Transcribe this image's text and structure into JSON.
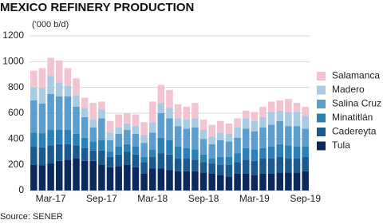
{
  "chart_data": {
    "type": "stacked_bar",
    "title": "MEXICO REFINERY PRODUCTION",
    "subtitle": "('000 b/d)",
    "source": "Source: SENER",
    "categories": [
      null,
      null,
      "Mar-17",
      null,
      null,
      null,
      null,
      null,
      "Sep-17",
      null,
      null,
      null,
      null,
      null,
      "Mar-18",
      null,
      null,
      null,
      null,
      null,
      "Sep-18",
      null,
      null,
      null,
      null,
      null,
      "Mar-19",
      null,
      null,
      null,
      null,
      null,
      "Sep-19"
    ],
    "series": [
      {
        "name": "Tula",
        "color": "#0b2a5b",
        "values": [
          200,
          195,
          210,
          230,
          240,
          250,
          230,
          230,
          200,
          180,
          190,
          200,
          180,
          130,
          170,
          170,
          160,
          150,
          150,
          150,
          140,
          130,
          120,
          110,
          130,
          130,
          120,
          130,
          130,
          140,
          140,
          140,
          150
        ]
      },
      {
        "name": "Cadereyta",
        "color": "#1b5a8e",
        "values": [
          140,
          140,
          140,
          130,
          120,
          100,
          100,
          80,
          110,
          80,
          90,
          100,
          100,
          90,
          90,
          120,
          120,
          100,
          100,
          90,
          80,
          80,
          80,
          90,
          90,
          110,
          110,
          120,
          120,
          120,
          110,
          110,
          110
        ]
      },
      {
        "name": "Minatitlán",
        "color": "#2b80b6",
        "values": [
          110,
          110,
          120,
          110,
          110,
          90,
          80,
          70,
          80,
          40,
          60,
          60,
          60,
          40,
          60,
          120,
          110,
          90,
          80,
          80,
          60,
          40,
          60,
          60,
          70,
          90,
          90,
          80,
          90,
          100,
          100,
          90,
          80
        ]
      },
      {
        "name": "Salina Cruz",
        "color": "#5b9dcc",
        "values": [
          250,
          230,
          280,
          260,
          260,
          210,
          160,
          110,
          170,
          90,
          100,
          110,
          100,
          110,
          130,
          190,
          170,
          160,
          150,
          170,
          120,
          110,
          130,
          120,
          120,
          150,
          140,
          160,
          170,
          180,
          150,
          160,
          140
        ]
      },
      {
        "name": "Madero",
        "color": "#a9cae3",
        "values": [
          100,
          120,
          140,
          110,
          80,
          90,
          70,
          60,
          70,
          60,
          50,
          50,
          60,
          60,
          80,
          80,
          80,
          60,
          70,
          70,
          70,
          60,
          60,
          60,
          80,
          80,
          80,
          80,
          100,
          80,
          110,
          110,
          100
        ]
      },
      {
        "name": "Salamanca",
        "color": "#f2c3d0",
        "values": [
          130,
          155,
          140,
          170,
          140,
          130,
          80,
          130,
          60,
          90,
          100,
          80,
          90,
          100,
          160,
          140,
          140,
          110,
          100,
          120,
          80,
          90,
          90,
          80,
          70,
          60,
          70,
          80,
          80,
          80,
          100,
          70,
          70
        ]
      }
    ],
    "ylim": [
      0,
      1200
    ],
    "yticks": [
      0,
      200,
      400,
      600,
      800,
      1000,
      1200
    ],
    "grid": true
  }
}
